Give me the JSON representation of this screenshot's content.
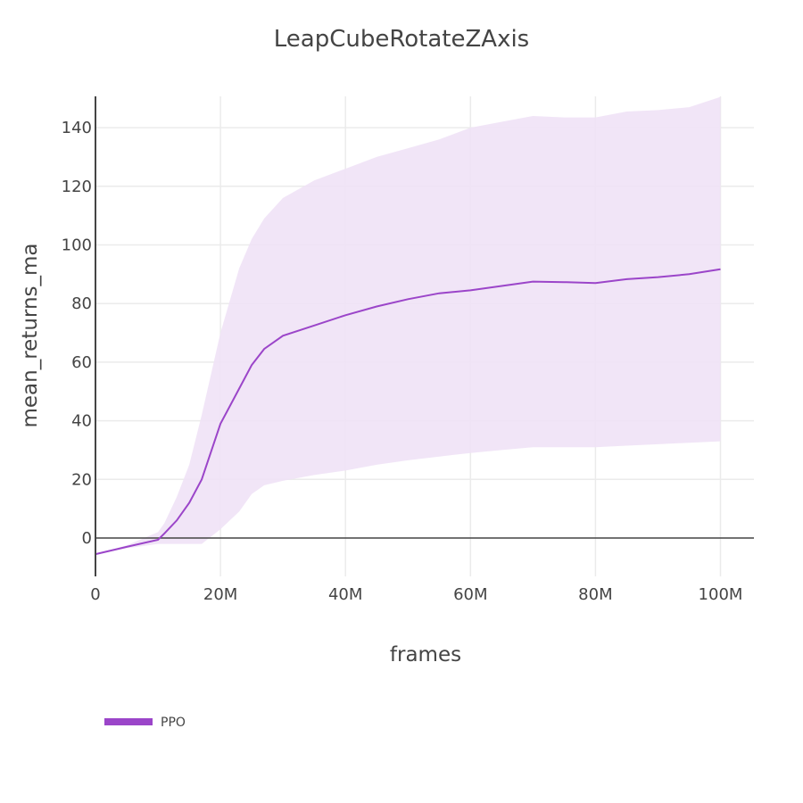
{
  "chart_data": {
    "type": "line",
    "title": "LeapCubeRotateZAxis",
    "xlabel": "frames",
    "ylabel": "mean_returns_ma",
    "xlim": [
      0,
      105000000
    ],
    "ylim": [
      -13,
      150
    ],
    "grid": true,
    "legend_position": "bottom-left",
    "x_ticks": [
      {
        "value": 0,
        "label": "0"
      },
      {
        "value": 20000000,
        "label": "20M"
      },
      {
        "value": 40000000,
        "label": "40M"
      },
      {
        "value": 60000000,
        "label": "60M"
      },
      {
        "value": 80000000,
        "label": "80M"
      },
      {
        "value": 100000000,
        "label": "100M"
      }
    ],
    "y_ticks": [
      {
        "value": 0,
        "label": "0"
      },
      {
        "value": 20,
        "label": "20"
      },
      {
        "value": 40,
        "label": "40"
      },
      {
        "value": 60,
        "label": "60"
      },
      {
        "value": 80,
        "label": "80"
      },
      {
        "value": 100,
        "label": "100"
      },
      {
        "value": 120,
        "label": "120"
      },
      {
        "value": 140,
        "label": "140"
      }
    ],
    "series": [
      {
        "name": "PPO",
        "color": "#9b45c9",
        "band_color": "#efe2f6",
        "x_millions": [
          0,
          5,
          10,
          11,
          13,
          15,
          17,
          20,
          23,
          25,
          27,
          30,
          35,
          40,
          45,
          50,
          55,
          60,
          65,
          70,
          75,
          80,
          85,
          90,
          95,
          100
        ],
        "mean": [
          -5.5,
          -3,
          -0.6,
          1.5,
          6,
          12,
          20,
          39,
          51,
          59,
          64.5,
          69,
          72.5,
          76,
          79,
          81.5,
          83.5,
          84.5,
          86,
          87.5,
          87.3,
          87,
          88.3,
          89,
          90,
          91.7
        ],
        "upper": [
          -5.5,
          -2.5,
          2,
          5,
          14,
          25,
          42,
          70,
          92,
          102,
          109,
          116,
          122,
          126,
          130,
          133,
          136,
          140,
          142,
          144,
          143.5,
          143.5,
          145.5,
          146,
          147,
          150.5
        ],
        "lower": [
          -5.5,
          -3.5,
          -2,
          -2,
          -2,
          -2,
          -2,
          3,
          9,
          15,
          18,
          19.5,
          21.5,
          23,
          25,
          26.5,
          27.8,
          29,
          30,
          31,
          31,
          31,
          31.5,
          32,
          32.5,
          33
        ]
      }
    ]
  },
  "legend": {
    "items": [
      {
        "label": "PPO",
        "color": "#9b45c9"
      }
    ]
  }
}
